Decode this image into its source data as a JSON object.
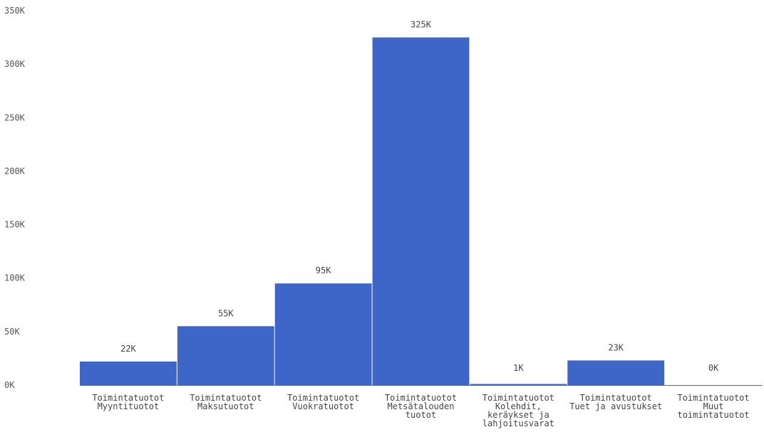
{
  "chart_data": {
    "type": "bar",
    "title": "",
    "xlabel": "",
    "ylabel": "",
    "ylim": [
      0,
      350000
    ],
    "y_ticks": [
      0,
      50000,
      100000,
      150000,
      200000,
      250000,
      300000,
      350000
    ],
    "y_tick_labels": [
      "0K",
      "50K",
      "100K",
      "150K",
      "200K",
      "250K",
      "300K",
      "350K"
    ],
    "grid": false,
    "bar_color": "#3e66c8",
    "categories": [
      [
        "Toimintatuotot",
        "Myyntituotot"
      ],
      [
        "Toimintatuotot",
        "Maksutuotot"
      ],
      [
        "Toimintatuotot",
        "Vuokratuotot"
      ],
      [
        "Toimintatuotot",
        "Metsätalouden",
        "tuotot"
      ],
      [
        "Toimintatuotot",
        "Kolehdit,",
        "keräykset ja",
        "lahjoitusvarat"
      ],
      [
        "Toimintatuotot",
        "Tuet ja avustukset"
      ],
      [
        "Toimintatuotot",
        "Muut",
        "toimintatuotot"
      ]
    ],
    "values": [
      22000,
      55000,
      95000,
      325000,
      1000,
      23000,
      0
    ],
    "data_labels": [
      "22K",
      "55K",
      "95K",
      "325K",
      "1K",
      "23K",
      "0K"
    ]
  }
}
